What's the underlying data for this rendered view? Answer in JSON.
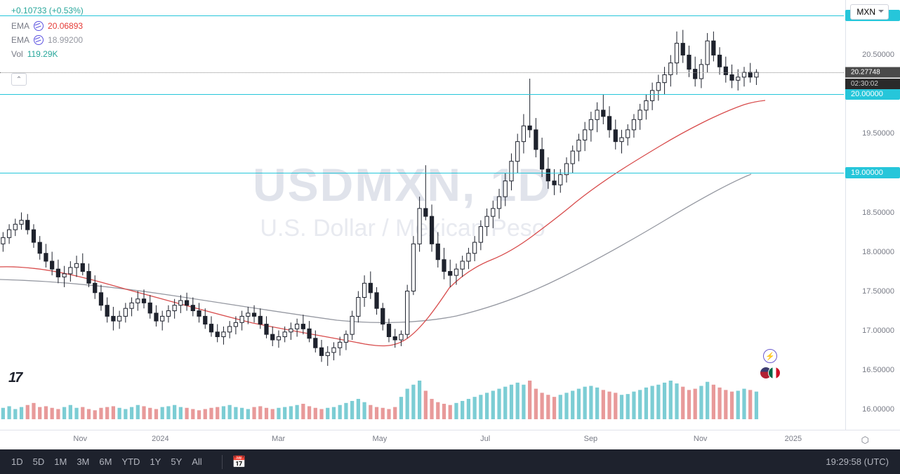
{
  "header": {
    "change": "+0.10733",
    "change_pct": "(+0.53%)",
    "currency": "MXN",
    "ema1_label": "EMA",
    "ema1_value": "20.06893",
    "ema2_label": "EMA",
    "ema2_value": "18.99200",
    "vol_label": "Vol",
    "vol_value": "119.29K"
  },
  "watermark": {
    "symbol": "USDMXN, 1D",
    "desc": "U.S. Dollar / Mexican Peso"
  },
  "chart": {
    "y_min": 15.8,
    "y_max": 21.2,
    "y_ticks": [
      {
        "v": 21.0,
        "label": "21.00000",
        "hl": true
      },
      {
        "v": 20.5,
        "label": "20.50000"
      },
      {
        "v": 20.0,
        "label": "20.00000",
        "hl": true
      },
      {
        "v": 19.5,
        "label": "19.50000"
      },
      {
        "v": 19.0,
        "label": "19.00000",
        "hl": true
      },
      {
        "v": 18.5,
        "label": "18.50000"
      },
      {
        "v": 18.0,
        "label": "18.00000"
      },
      {
        "v": 17.5,
        "label": "17.50000"
      },
      {
        "v": 17.0,
        "label": "17.00000"
      },
      {
        "v": 16.5,
        "label": "16.50000"
      },
      {
        "v": 16.0,
        "label": "16.00000"
      }
    ],
    "hlines": [
      21.0,
      20.0,
      19.0
    ],
    "current_price": 20.27748,
    "current_price_label": "20.27748",
    "countdown": "02:30:02",
    "x_ticks": [
      {
        "x": 0.095,
        "label": "Nov"
      },
      {
        "x": 0.19,
        "label": "2024"
      },
      {
        "x": 0.33,
        "label": "Mar"
      },
      {
        "x": 0.45,
        "label": "May"
      },
      {
        "x": 0.575,
        "label": "Jul"
      },
      {
        "x": 0.7,
        "label": "Sep"
      },
      {
        "x": 0.83,
        "label": "Nov"
      },
      {
        "x": 0.94,
        "label": "2025"
      }
    ],
    "colors": {
      "ema1": "#d84c4c",
      "ema2": "#9598a1",
      "candle_up": "#1e222d",
      "candle_down": "#1e222d",
      "vol_up": "#7ccdd4",
      "vol_down": "#e89a9a",
      "hline": "#26c6da"
    },
    "ohlc": [
      {
        "o": 18.1,
        "h": 18.25,
        "l": 18.0,
        "c": 18.18
      },
      {
        "o": 18.18,
        "h": 18.35,
        "l": 18.1,
        "c": 18.28
      },
      {
        "o": 18.28,
        "h": 18.42,
        "l": 18.2,
        "c": 18.35
      },
      {
        "o": 18.35,
        "h": 18.5,
        "l": 18.28,
        "c": 18.4
      },
      {
        "o": 18.4,
        "h": 18.48,
        "l": 18.22,
        "c": 18.28
      },
      {
        "o": 18.28,
        "h": 18.35,
        "l": 18.05,
        "c": 18.12
      },
      {
        "o": 18.12,
        "h": 18.2,
        "l": 17.9,
        "c": 17.98
      },
      {
        "o": 17.98,
        "h": 18.1,
        "l": 17.8,
        "c": 17.88
      },
      {
        "o": 17.88,
        "h": 18.0,
        "l": 17.7,
        "c": 17.78
      },
      {
        "o": 17.78,
        "h": 17.9,
        "l": 17.6,
        "c": 17.68
      },
      {
        "o": 17.68,
        "h": 17.82,
        "l": 17.55,
        "c": 17.72
      },
      {
        "o": 17.72,
        "h": 17.88,
        "l": 17.62,
        "c": 17.8
      },
      {
        "o": 17.8,
        "h": 17.95,
        "l": 17.68,
        "c": 17.85
      },
      {
        "o": 17.85,
        "h": 17.98,
        "l": 17.7,
        "c": 17.75
      },
      {
        "o": 17.75,
        "h": 17.85,
        "l": 17.55,
        "c": 17.6
      },
      {
        "o": 17.6,
        "h": 17.7,
        "l": 17.4,
        "c": 17.48
      },
      {
        "o": 17.48,
        "h": 17.58,
        "l": 17.25,
        "c": 17.32
      },
      {
        "o": 17.32,
        "h": 17.42,
        "l": 17.1,
        "c": 17.18
      },
      {
        "o": 17.18,
        "h": 17.3,
        "l": 17.0,
        "c": 17.12
      },
      {
        "o": 17.12,
        "h": 17.25,
        "l": 17.02,
        "c": 17.18
      },
      {
        "o": 17.18,
        "h": 17.35,
        "l": 17.1,
        "c": 17.28
      },
      {
        "o": 17.28,
        "h": 17.42,
        "l": 17.18,
        "c": 17.35
      },
      {
        "o": 17.35,
        "h": 17.5,
        "l": 17.25,
        "c": 17.4
      },
      {
        "o": 17.4,
        "h": 17.52,
        "l": 17.28,
        "c": 17.35
      },
      {
        "o": 17.35,
        "h": 17.45,
        "l": 17.15,
        "c": 17.22
      },
      {
        "o": 17.22,
        "h": 17.32,
        "l": 17.05,
        "c": 17.12
      },
      {
        "o": 17.12,
        "h": 17.25,
        "l": 17.0,
        "c": 17.18
      },
      {
        "o": 17.18,
        "h": 17.32,
        "l": 17.1,
        "c": 17.25
      },
      {
        "o": 17.25,
        "h": 17.4,
        "l": 17.15,
        "c": 17.32
      },
      {
        "o": 17.32,
        "h": 17.45,
        "l": 17.22,
        "c": 17.38
      },
      {
        "o": 17.38,
        "h": 17.48,
        "l": 17.25,
        "c": 17.32
      },
      {
        "o": 17.32,
        "h": 17.42,
        "l": 17.18,
        "c": 17.25
      },
      {
        "o": 17.25,
        "h": 17.35,
        "l": 17.1,
        "c": 17.18
      },
      {
        "o": 17.18,
        "h": 17.28,
        "l": 17.02,
        "c": 17.08
      },
      {
        "o": 17.08,
        "h": 17.18,
        "l": 16.92,
        "c": 16.98
      },
      {
        "o": 16.98,
        "h": 17.08,
        "l": 16.85,
        "c": 16.92
      },
      {
        "o": 16.92,
        "h": 17.05,
        "l": 16.82,
        "c": 16.98
      },
      {
        "o": 16.98,
        "h": 17.12,
        "l": 16.9,
        "c": 17.05
      },
      {
        "o": 17.05,
        "h": 17.18,
        "l": 16.95,
        "c": 17.1
      },
      {
        "o": 17.1,
        "h": 17.25,
        "l": 17.0,
        "c": 17.18
      },
      {
        "o": 17.18,
        "h": 17.3,
        "l": 17.08,
        "c": 17.22
      },
      {
        "o": 17.22,
        "h": 17.32,
        "l": 17.1,
        "c": 17.18
      },
      {
        "o": 17.18,
        "h": 17.28,
        "l": 17.02,
        "c": 17.08
      },
      {
        "o": 17.08,
        "h": 17.18,
        "l": 16.9,
        "c": 16.95
      },
      {
        "o": 16.95,
        "h": 17.05,
        "l": 16.8,
        "c": 16.88
      },
      {
        "o": 16.88,
        "h": 17.0,
        "l": 16.78,
        "c": 16.92
      },
      {
        "o": 16.92,
        "h": 17.05,
        "l": 16.85,
        "c": 16.98
      },
      {
        "o": 16.98,
        "h": 17.1,
        "l": 16.88,
        "c": 17.02
      },
      {
        "o": 17.02,
        "h": 17.15,
        "l": 16.92,
        "c": 17.08
      },
      {
        "o": 17.08,
        "h": 17.2,
        "l": 16.95,
        "c": 17.02
      },
      {
        "o": 17.02,
        "h": 17.12,
        "l": 16.85,
        "c": 16.9
      },
      {
        "o": 16.9,
        "h": 17.0,
        "l": 16.72,
        "c": 16.78
      },
      {
        "o": 16.78,
        "h": 16.88,
        "l": 16.6,
        "c": 16.68
      },
      {
        "o": 16.68,
        "h": 16.8,
        "l": 16.55,
        "c": 16.72
      },
      {
        "o": 16.72,
        "h": 16.85,
        "l": 16.62,
        "c": 16.78
      },
      {
        "o": 16.78,
        "h": 16.92,
        "l": 16.68,
        "c": 16.85
      },
      {
        "o": 16.85,
        "h": 17.0,
        "l": 16.75,
        "c": 16.95
      },
      {
        "o": 16.95,
        "h": 17.25,
        "l": 16.88,
        "c": 17.18
      },
      {
        "o": 17.18,
        "h": 17.5,
        "l": 17.1,
        "c": 17.42
      },
      {
        "o": 17.42,
        "h": 17.7,
        "l": 17.3,
        "c": 17.6
      },
      {
        "o": 17.6,
        "h": 17.75,
        "l": 17.4,
        "c": 17.48
      },
      {
        "o": 17.48,
        "h": 17.55,
        "l": 17.2,
        "c": 17.28
      },
      {
        "o": 17.28,
        "h": 17.35,
        "l": 17.0,
        "c": 17.08
      },
      {
        "o": 17.08,
        "h": 17.15,
        "l": 16.85,
        "c": 16.92
      },
      {
        "o": 16.92,
        "h": 17.02,
        "l": 16.78,
        "c": 16.88
      },
      {
        "o": 16.88,
        "h": 17.0,
        "l": 16.8,
        "c": 16.95
      },
      {
        "o": 16.95,
        "h": 17.58,
        "l": 16.9,
        "c": 17.5
      },
      {
        "o": 17.5,
        "h": 18.2,
        "l": 17.45,
        "c": 18.1
      },
      {
        "o": 18.1,
        "h": 18.7,
        "l": 18.0,
        "c": 18.55
      },
      {
        "o": 18.55,
        "h": 19.1,
        "l": 18.4,
        "c": 18.45
      },
      {
        "o": 18.45,
        "h": 18.6,
        "l": 18.0,
        "c": 18.1
      },
      {
        "o": 18.1,
        "h": 18.25,
        "l": 17.8,
        "c": 17.9
      },
      {
        "o": 17.9,
        "h": 18.05,
        "l": 17.65,
        "c": 17.75
      },
      {
        "o": 17.75,
        "h": 17.9,
        "l": 17.55,
        "c": 17.7
      },
      {
        "o": 17.7,
        "h": 17.85,
        "l": 17.58,
        "c": 17.78
      },
      {
        "o": 17.78,
        "h": 17.95,
        "l": 17.68,
        "c": 17.88
      },
      {
        "o": 17.88,
        "h": 18.05,
        "l": 17.78,
        "c": 17.98
      },
      {
        "o": 17.98,
        "h": 18.2,
        "l": 17.88,
        "c": 18.12
      },
      {
        "o": 18.12,
        "h": 18.4,
        "l": 18.02,
        "c": 18.32
      },
      {
        "o": 18.32,
        "h": 18.55,
        "l": 18.2,
        "c": 18.45
      },
      {
        "o": 18.45,
        "h": 18.65,
        "l": 18.3,
        "c": 18.55
      },
      {
        "o": 18.55,
        "h": 18.8,
        "l": 18.42,
        "c": 18.7
      },
      {
        "o": 18.7,
        "h": 19.0,
        "l": 18.58,
        "c": 18.9
      },
      {
        "o": 18.9,
        "h": 19.25,
        "l": 18.78,
        "c": 19.15
      },
      {
        "o": 19.15,
        "h": 19.5,
        "l": 19.0,
        "c": 19.4
      },
      {
        "o": 19.4,
        "h": 19.75,
        "l": 19.25,
        "c": 19.6
      },
      {
        "o": 19.6,
        "h": 20.2,
        "l": 19.45,
        "c": 19.55
      },
      {
        "o": 19.55,
        "h": 19.7,
        "l": 19.2,
        "c": 19.3
      },
      {
        "o": 19.3,
        "h": 19.45,
        "l": 18.95,
        "c": 19.05
      },
      {
        "o": 19.05,
        "h": 19.2,
        "l": 18.8,
        "c": 18.9
      },
      {
        "o": 18.9,
        "h": 19.05,
        "l": 18.72,
        "c": 18.85
      },
      {
        "o": 18.85,
        "h": 19.05,
        "l": 18.75,
        "c": 18.98
      },
      {
        "o": 18.98,
        "h": 19.2,
        "l": 18.88,
        "c": 19.12
      },
      {
        "o": 19.12,
        "h": 19.35,
        "l": 19.0,
        "c": 19.28
      },
      {
        "o": 19.28,
        "h": 19.5,
        "l": 19.15,
        "c": 19.42
      },
      {
        "o": 19.42,
        "h": 19.65,
        "l": 19.28,
        "c": 19.55
      },
      {
        "o": 19.55,
        "h": 19.78,
        "l": 19.4,
        "c": 19.68
      },
      {
        "o": 19.68,
        "h": 19.9,
        "l": 19.52,
        "c": 19.8
      },
      {
        "o": 19.8,
        "h": 20.0,
        "l": 19.62,
        "c": 19.72
      },
      {
        "o": 19.72,
        "h": 19.85,
        "l": 19.45,
        "c": 19.55
      },
      {
        "o": 19.55,
        "h": 19.68,
        "l": 19.3,
        "c": 19.4
      },
      {
        "o": 19.4,
        "h": 19.55,
        "l": 19.25,
        "c": 19.45
      },
      {
        "o": 19.45,
        "h": 19.62,
        "l": 19.35,
        "c": 19.55
      },
      {
        "o": 19.55,
        "h": 19.75,
        "l": 19.45,
        "c": 19.68
      },
      {
        "o": 19.68,
        "h": 19.88,
        "l": 19.55,
        "c": 19.8
      },
      {
        "o": 19.8,
        "h": 20.0,
        "l": 19.68,
        "c": 19.92
      },
      {
        "o": 19.92,
        "h": 20.15,
        "l": 19.8,
        "c": 20.05
      },
      {
        "o": 20.05,
        "h": 20.25,
        "l": 19.92,
        "c": 20.15
      },
      {
        "o": 20.15,
        "h": 20.35,
        "l": 20.0,
        "c": 20.25
      },
      {
        "o": 20.25,
        "h": 20.5,
        "l": 20.1,
        "c": 20.4
      },
      {
        "o": 20.4,
        "h": 20.8,
        "l": 20.25,
        "c": 20.65
      },
      {
        "o": 20.65,
        "h": 20.82,
        "l": 20.4,
        "c": 20.5
      },
      {
        "o": 20.5,
        "h": 20.62,
        "l": 20.22,
        "c": 20.32
      },
      {
        "o": 20.32,
        "h": 20.48,
        "l": 20.1,
        "c": 20.2
      },
      {
        "o": 20.2,
        "h": 20.45,
        "l": 20.08,
        "c": 20.38
      },
      {
        "o": 20.38,
        "h": 20.78,
        "l": 20.28,
        "c": 20.68
      },
      {
        "o": 20.68,
        "h": 20.8,
        "l": 20.42,
        "c": 20.5
      },
      {
        "o": 20.5,
        "h": 20.6,
        "l": 20.25,
        "c": 20.35
      },
      {
        "o": 20.35,
        "h": 20.48,
        "l": 20.15,
        "c": 20.25
      },
      {
        "o": 20.25,
        "h": 20.38,
        "l": 20.08,
        "c": 20.18
      },
      {
        "o": 20.18,
        "h": 20.32,
        "l": 20.05,
        "c": 20.22
      },
      {
        "o": 20.22,
        "h": 20.35,
        "l": 20.1,
        "c": 20.28
      },
      {
        "o": 20.28,
        "h": 20.4,
        "l": 20.15,
        "c": 20.22
      },
      {
        "o": 20.22,
        "h": 20.32,
        "l": 20.12,
        "c": 20.28
      }
    ],
    "ema1_line": "M0,380 C60,378 120,395 180,412 C240,428 300,445 360,460 C420,472 480,482 520,490 C540,493 560,496 580,482 C600,468 620,440 640,410 C660,390 680,378 700,370 C720,362 740,350 760,335 C780,320 800,305 820,288 C840,272 860,258 880,245 C900,232 920,220 940,208 C960,196 980,185 1000,175 C1020,165 1040,156 1060,149 C1070,146 1080,144 1090,143",
    "ema2_line": "M0,398 C80,400 160,408 240,420 C320,432 400,445 480,456 C540,462 600,460 650,450 C700,438 750,420 800,395 C850,370 900,342 950,312 C1000,282 1040,260 1070,248",
    "volume": [
      28,
      32,
      25,
      30,
      35,
      40,
      30,
      32,
      28,
      25,
      30,
      35,
      28,
      30,
      25,
      22,
      28,
      30,
      32,
      28,
      25,
      30,
      35,
      32,
      28,
      25,
      30,
      32,
      35,
      30,
      28,
      25,
      22,
      25,
      28,
      30,
      32,
      35,
      30,
      28,
      25,
      30,
      32,
      28,
      25,
      28,
      30,
      32,
      35,
      38,
      32,
      28,
      25,
      28,
      30,
      35,
      40,
      45,
      50,
      42,
      35,
      30,
      28,
      25,
      30,
      55,
      75,
      85,
      95,
      70,
      50,
      42,
      38,
      35,
      40,
      45,
      50,
      55,
      60,
      65,
      70,
      75,
      80,
      85,
      90,
      85,
      95,
      75,
      65,
      60,
      55,
      60,
      65,
      70,
      75,
      80,
      82,
      78,
      72,
      68,
      65,
      60,
      62,
      68,
      72,
      78,
      82,
      85,
      90,
      95,
      88,
      80,
      72,
      75,
      82,
      92,
      85,
      78,
      72,
      68,
      70,
      75,
      72,
      68
    ]
  },
  "footer": {
    "ranges": [
      "1D",
      "5D",
      "1M",
      "3M",
      "6M",
      "YTD",
      "1Y",
      "5Y",
      "All"
    ],
    "clock": "19:29:58 (UTC)"
  }
}
